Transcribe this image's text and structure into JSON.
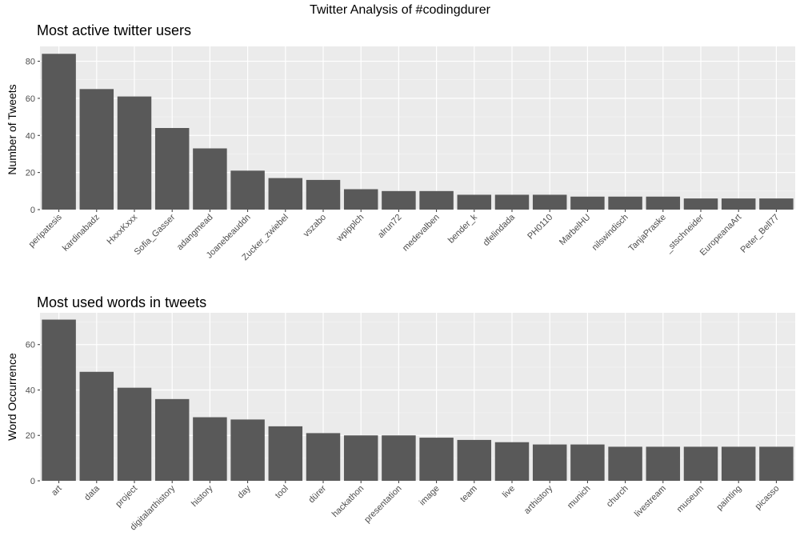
{
  "suptitle": "Twitter Analysis of #codingdurer",
  "chart_data": [
    {
      "type": "bar",
      "title": "Most active twitter users",
      "xlabel": "",
      "ylabel": "Number of Tweets",
      "ylim": [
        0,
        88
      ],
      "yticks": [
        0,
        20,
        40,
        60,
        80
      ],
      "grid": true,
      "bar_color": "#595959",
      "panel_color": "#ebebeb",
      "categories": [
        "peripatesis",
        "kardinabadz",
        "HxxxKxxx",
        "Sofia_Gasser",
        "adangmead",
        "Joanebeauddn",
        "Zucker_zwiebel",
        "vszabo",
        "wpipplch",
        "alrun72",
        "medevalben",
        "bender_k",
        "dfelindada",
        "PH0110",
        "MarbelHU",
        "nilswindisch",
        "TanjaPraske",
        "_stschneider",
        "EuropeanaArt",
        "Peter_Bell77"
      ],
      "values": [
        84,
        65,
        61,
        44,
        33,
        21,
        17,
        16,
        11,
        10,
        10,
        8,
        8,
        8,
        7,
        7,
        7,
        6,
        6,
        6
      ]
    },
    {
      "type": "bar",
      "title": "Most used words in tweets",
      "xlabel": "",
      "ylabel": "Word Occurrence",
      "ylim": [
        0,
        74
      ],
      "yticks": [
        0,
        20,
        40,
        60
      ],
      "grid": true,
      "bar_color": "#595959",
      "panel_color": "#ebebeb",
      "categories": [
        "art",
        "data",
        "project",
        "digitalarthistory",
        "history",
        "day",
        "tool",
        "dürer",
        "hackathon",
        "presentation",
        "image",
        "team",
        "live",
        "arthistory",
        "munich",
        "church",
        "livestream",
        "museum",
        "painting",
        "picasso"
      ],
      "values": [
        71,
        48,
        41,
        36,
        28,
        27,
        24,
        21,
        20,
        20,
        19,
        18,
        17,
        16,
        16,
        15,
        15,
        15,
        15,
        15
      ]
    }
  ]
}
